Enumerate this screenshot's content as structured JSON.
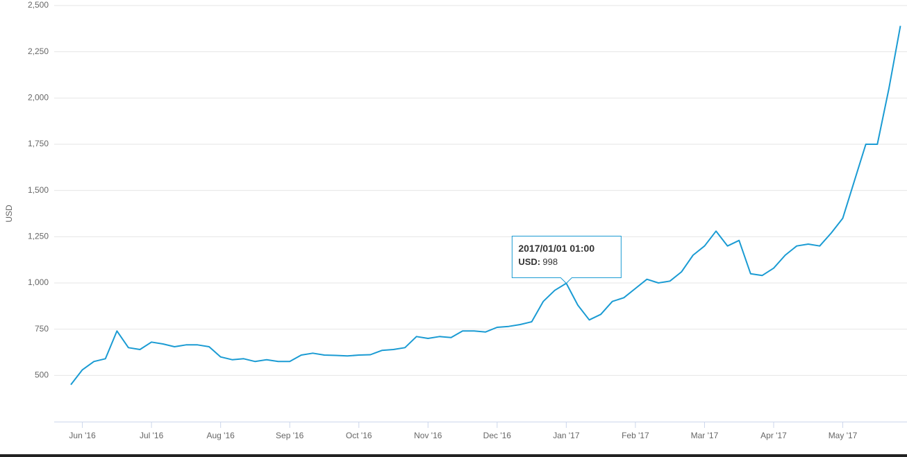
{
  "chart_data": {
    "type": "line",
    "ylabel": "USD",
    "categories": [
      null,
      "Jun '16",
      null,
      null,
      null,
      null,
      null,
      "Jul '16",
      null,
      null,
      null,
      null,
      null,
      "Aug '16",
      null,
      null,
      null,
      null,
      null,
      "Sep '16",
      null,
      null,
      null,
      null,
      null,
      "Oct '16",
      null,
      null,
      null,
      null,
      null,
      "Nov '16",
      null,
      null,
      null,
      null,
      null,
      "Dec '16",
      null,
      null,
      null,
      null,
      null,
      "Jan '17",
      null,
      null,
      null,
      null,
      null,
      "Feb '17",
      null,
      null,
      null,
      null,
      null,
      "Mar '17",
      null,
      null,
      null,
      null,
      null,
      "Apr '17",
      null,
      null,
      null,
      null,
      null,
      "May '17",
      null,
      null,
      null,
      null,
      null
    ],
    "series": [
      {
        "name": "USD",
        "color": "#1a9bd3",
        "values": [
          450,
          530,
          575,
          590,
          740,
          650,
          640,
          680,
          670,
          655,
          665,
          665,
          655,
          600,
          585,
          590,
          575,
          585,
          575,
          575,
          610,
          620,
          610,
          608,
          605,
          610,
          612,
          635,
          640,
          650,
          710,
          700,
          710,
          705,
          740,
          740,
          735,
          760,
          765,
          775,
          790,
          900,
          960,
          998,
          880,
          800,
          830,
          900,
          920,
          970,
          1020,
          1000,
          1010,
          1060,
          1150,
          1200,
          1280,
          1200,
          1230,
          1050,
          1040,
          1080,
          1150,
          1200,
          1210,
          1200,
          1270,
          1350,
          1550,
          1750,
          1750,
          2050,
          2390
        ]
      }
    ],
    "ylim": [
      250,
      2500
    ],
    "yticks": [
      500,
      750,
      {
        "value": 1000,
        "label": "1,000"
      },
      {
        "value": 1250,
        "label": "1,250"
      },
      {
        "value": 1500,
        "label": "1,500"
      },
      {
        "value": 1750,
        "label": "1,750"
      },
      {
        "value": 2000,
        "label": "2,000"
      },
      {
        "value": 2250,
        "label": "2,250"
      },
      {
        "value": 2500,
        "label": "2,500"
      }
    ],
    "grid": true,
    "tooltip": {
      "title": "2017/01/01 01:00",
      "label": "USD:",
      "value": 998,
      "index": 43
    }
  }
}
